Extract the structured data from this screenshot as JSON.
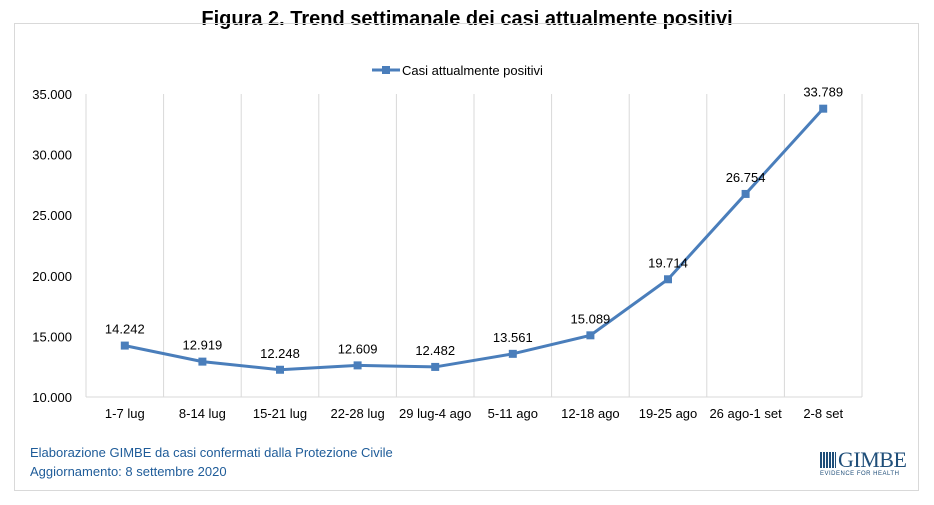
{
  "title": "Figura 2. Trend settimanale dei casi attualmente positivi",
  "source_line": "Elaborazione GIMBE da casi confermati dalla Protezione Civile",
  "updated_line": "Aggiornamento: 8 settembre 2020",
  "logo": {
    "name": "GIMBE",
    "tagline": "EVIDENCE FOR HEALTH"
  },
  "chart_data": {
    "type": "line",
    "categories": [
      "1-7 lug",
      "8-14 lug",
      "15-21 lug",
      "22-28 lug",
      "29 lug-4 ago",
      "5-11 ago",
      "12-18 ago",
      "19-25 ago",
      "26 ago-1 set",
      "2-8 set"
    ],
    "series": [
      {
        "name": "Casi attualmente positivi",
        "values": [
          14242,
          12919,
          12248,
          12609,
          12482,
          13561,
          15089,
          19714,
          26754,
          33789
        ],
        "labels": [
          "14.242",
          "12.919",
          "12.248",
          "12.609",
          "12.482",
          "13.561",
          "15.089",
          "19.714",
          "26.754",
          "33.789"
        ],
        "color": "#4a7ebb"
      }
    ],
    "ylim": [
      10000,
      35000
    ],
    "yticks": [
      "10.000",
      "15.000",
      "20.000",
      "25.000",
      "30.000",
      "35.000"
    ],
    "grid": "vertical",
    "legend": "top"
  }
}
